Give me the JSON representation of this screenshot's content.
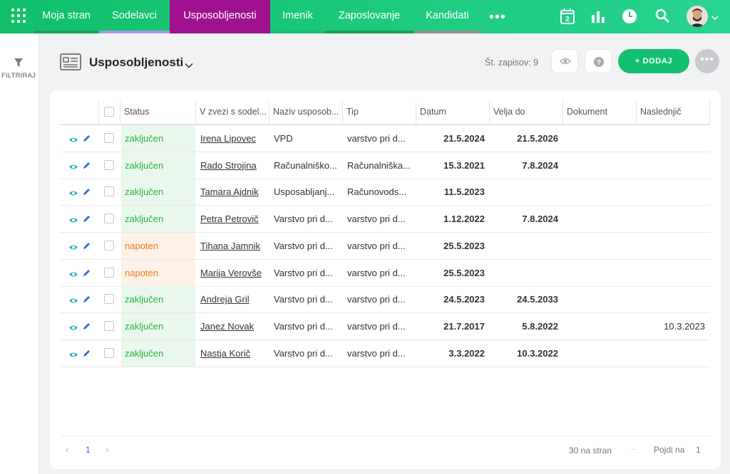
{
  "nav": {
    "tabs": [
      {
        "label": "Moja stran",
        "underline": "#1aa35a"
      },
      {
        "label": "Sodelavci",
        "underline": "#a99be6"
      },
      {
        "label": "Usposobljenosti",
        "underline": "#a0118f"
      },
      {
        "label": "Imenik",
        "underline": "#1bbf6f"
      },
      {
        "label": "Zaposlovanje",
        "underline": "#16a34a"
      },
      {
        "label": "Kandidati",
        "underline": "#8f8f8f"
      }
    ],
    "more": "•••",
    "calendar_day": "2"
  },
  "sidebar": {
    "filter_label": "FILTRIRAJ"
  },
  "header": {
    "title": "Usposobljenosti",
    "record_count": "Št. zapisov: 9",
    "add_label": "+ DODAJ",
    "more": "•••"
  },
  "table": {
    "columns": [
      "Status",
      "V zvezi s sodel...",
      "Naziv usposob...",
      "Tip",
      "Datum",
      "Velja do",
      "Dokument",
      "Naslednjič"
    ],
    "rows": [
      {
        "status": "zaključen",
        "status_type": "green",
        "person": "Irena Lipovec",
        "naziv": "VPD",
        "tip": "varstvo pri d...",
        "datum": "21.5.2024",
        "velja": "21.5.2026",
        "dokument": "",
        "naslednjic": ""
      },
      {
        "status": "zaključen",
        "status_type": "green",
        "person": "Rado Strojina",
        "naziv": "Računalniško...",
        "tip": "Računalniška...",
        "datum": "15.3.2021",
        "velja": "7.8.2024",
        "dokument": "",
        "naslednjic": ""
      },
      {
        "status": "zaključen",
        "status_type": "green",
        "person": "Tamara Ajdnik",
        "naziv": "Usposabljanj...",
        "tip": "Računovods...",
        "datum": "11.5.2023",
        "velja": "",
        "dokument": "",
        "naslednjic": ""
      },
      {
        "status": "zaključen",
        "status_type": "green",
        "person": "Petra Petrovič",
        "naziv": "Varstvo pri d...",
        "tip": "varstvo pri d...",
        "datum": "1.12.2022",
        "velja": "7.8.2024",
        "dokument": "",
        "naslednjic": ""
      },
      {
        "status": "napoten",
        "status_type": "orange",
        "person": "Tihana Jamnik",
        "naziv": "Varstvo pri d...",
        "tip": "varstvo pri d...",
        "datum": "25.5.2023",
        "velja": "",
        "dokument": "",
        "naslednjic": ""
      },
      {
        "status": "napoten",
        "status_type": "orange",
        "person": "Marija Verovše",
        "naziv": "Varstvo pri d...",
        "tip": "varstvo pri d...",
        "datum": "25.5.2023",
        "velja": "",
        "dokument": "",
        "naslednjic": ""
      },
      {
        "status": "zaključen",
        "status_type": "green",
        "person": "Andreja Gril",
        "naziv": "Varstvo pri d...",
        "tip": "varstvo pri d...",
        "datum": "24.5.2023",
        "velja": "24.5.2033",
        "dokument": "",
        "naslednjic": ""
      },
      {
        "status": "zaključen",
        "status_type": "green",
        "person": "Janez Novak",
        "naziv": "Varstvo pri d...",
        "tip": "varstvo pri d...",
        "datum": "21.7.2017",
        "velja": "5.8.2022",
        "dokument": "",
        "naslednjic": "10.3.2023"
      },
      {
        "status": "zaključen",
        "status_type": "green",
        "person": "Nastja Korič",
        "naziv": "Varstvo pri d...",
        "tip": "varstvo pri d...",
        "datum": "3.3.2022",
        "velja": "10.3.2022",
        "dokument": "",
        "naslednjic": ""
      }
    ]
  },
  "pagination": {
    "prev": "‹",
    "current": "1",
    "next": "›",
    "per_page": "30 na stran",
    "goto_label": "Pojdi na",
    "goto_value": "1"
  },
  "colors": {
    "accent": "#13c071",
    "active_tab": "#a0118f",
    "icon": "#2bb3c0"
  }
}
